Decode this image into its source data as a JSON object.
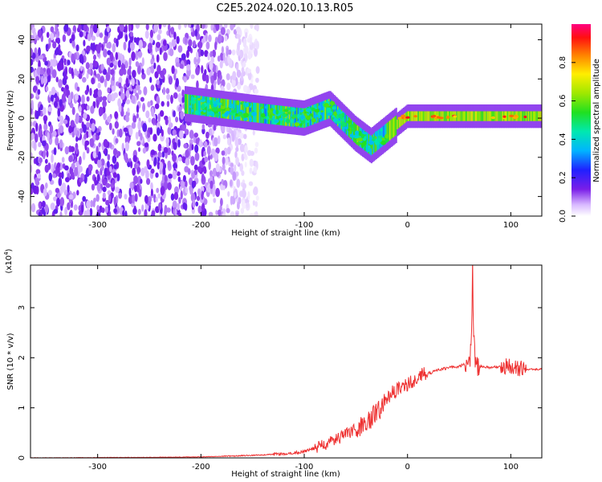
{
  "title": "C2E5.2024.020.10.13.R05",
  "chart_data": [
    {
      "type": "heatmap",
      "title": "C2E5.2024.020.10.13.R05",
      "xlabel": "Height of straight line (km)",
      "ylabel": "Frequency (Hz)",
      "xlim": [
        -365,
        130
      ],
      "ylim": [
        -50,
        48
      ],
      "xticks": [
        -300,
        -200,
        -100,
        0,
        100
      ],
      "yticks": [
        -40,
        -20,
        0,
        20,
        40
      ],
      "xtick_labels": [
        "-300",
        "-200",
        "-100",
        "0",
        "100"
      ],
      "ytick_labels": [
        "-40",
        "-20",
        "0",
        "20",
        "40"
      ],
      "colorbar": {
        "label": "Normalized spectral amplitude",
        "range": [
          0,
          1
        ],
        "ticks": [
          0.0,
          0.2,
          0.4,
          0.6,
          0.8
        ],
        "tick_labels": [
          "0.0",
          "0.2",
          "0.4",
          "0.6",
          "0.8"
        ]
      },
      "features": [
        {
          "name": "broadband noise",
          "x_range": [
            -365,
            -170
          ],
          "y_range": [
            -50,
            48
          ],
          "amplitude": 0.15
        },
        {
          "name": "signal track",
          "points": [
            [
              -210,
              7
            ],
            [
              -150,
              3
            ],
            [
              -100,
              0
            ],
            [
              -75,
              5
            ],
            [
              -50,
              -8
            ],
            [
              -35,
              -14
            ],
            [
              0,
              1
            ],
            [
              50,
              1
            ],
            [
              100,
              1
            ],
            [
              130,
              1
            ]
          ],
          "amplitude": 0.7
        },
        {
          "name": "peak amplitude region",
          "x_range": [
            -20,
            130
          ],
          "freq": 0.5,
          "amplitude": 0.95
        }
      ]
    },
    {
      "type": "line",
      "xlabel": "Height of straight line (km)",
      "ylabel": "SNR (10 * v/v)",
      "y_multiplier": "(x10",
      "y_multiplier_exp": "4",
      "y_multiplier_close": ")",
      "xlim": [
        -365,
        130
      ],
      "ylim": [
        0,
        3.85
      ],
      "xticks": [
        -300,
        -200,
        -100,
        0,
        100
      ],
      "yticks": [
        0,
        1,
        2,
        3
      ],
      "xtick_labels": [
        "-300",
        "-200",
        "-100",
        "0",
        "100"
      ],
      "ytick_labels": [
        "0",
        "1",
        "2",
        "3"
      ],
      "series": [
        {
          "name": "SNR",
          "color": "#ee3030",
          "x": [
            -365,
            -250,
            -200,
            -180,
            -150,
            -120,
            -100,
            -80,
            -60,
            -40,
            -25,
            -20,
            -10,
            0,
            10,
            20,
            30,
            40,
            50,
            55,
            60,
            62,
            63,
            64,
            66,
            70,
            80,
            90,
            100,
            110,
            120,
            130
          ],
          "y": [
            0.0,
            0.01,
            0.02,
            0.03,
            0.05,
            0.08,
            0.12,
            0.25,
            0.45,
            0.7,
            0.95,
            1.2,
            1.35,
            1.45,
            1.6,
            1.68,
            1.75,
            1.8,
            1.82,
            1.88,
            1.85,
            2.4,
            3.85,
            2.3,
            1.8,
            1.82,
            1.8,
            1.82,
            1.8,
            1.78,
            1.77,
            1.77
          ]
        }
      ]
    }
  ],
  "colors": {
    "line": "#ee3030",
    "axis": "#000000",
    "background": "#ffffff"
  }
}
